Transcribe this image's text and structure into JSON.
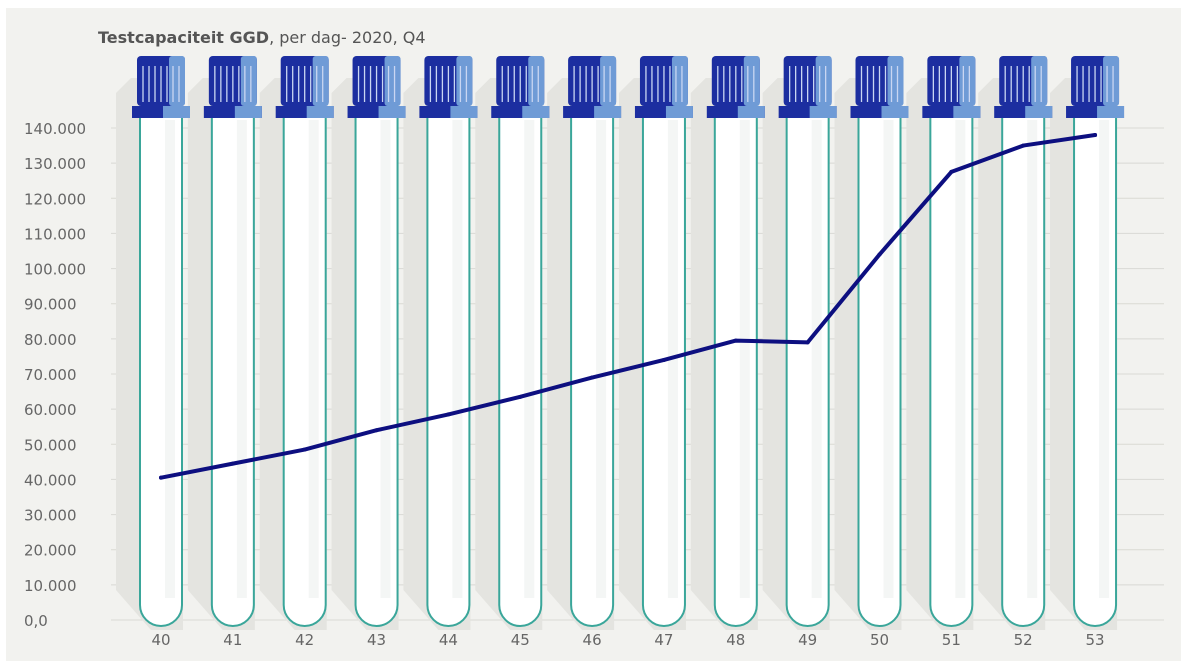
{
  "chart_data": {
    "type": "line",
    "title_bold": "Testcapaciteit GGD",
    "title_rest": ", per dag- 2020, Q4",
    "xlabel": "",
    "ylabel": "",
    "categories": [
      "40",
      "41",
      "42",
      "43",
      "44",
      "45",
      "46",
      "47",
      "48",
      "49",
      "50",
      "51",
      "52",
      "53"
    ],
    "series": [
      {
        "values": [
          40500,
          44500,
          48500,
          54000,
          58500,
          63500,
          69000,
          74000,
          79500,
          79000,
          104000,
          127500,
          135000,
          138000
        ]
      }
    ],
    "ylim": [
      0,
      140000
    ],
    "yticks": [
      0,
      10000,
      20000,
      30000,
      40000,
      50000,
      60000,
      70000,
      80000,
      90000,
      100000,
      110000,
      120000,
      130000,
      140000
    ],
    "ytick_labels": [
      "0,0",
      "10.000",
      "20.000",
      "30.000",
      "40.000",
      "50.000",
      "60.000",
      "70.000",
      "80.000",
      "90.000",
      "100.000",
      "110.000",
      "120.000",
      "130.000",
      "140.000"
    ],
    "grid": true,
    "legend": "none",
    "colors": {
      "line": "#0d0f80",
      "tube_outline": "#3aa69a",
      "cap_dark": "#1c2ea0",
      "cap_light": "#6f9bd6",
      "grid": "#d9d9d4",
      "tick_text": "#666666",
      "background": "#f2f2ef"
    }
  }
}
